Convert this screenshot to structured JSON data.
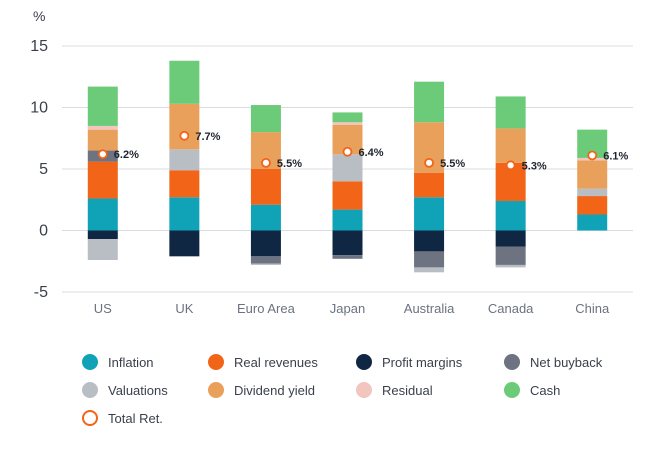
{
  "chart_data": {
    "type": "bar",
    "stacked": true,
    "ylabel": "%",
    "ylim": [
      -5,
      15
    ],
    "yticks": [
      15,
      10,
      5,
      0,
      -5
    ],
    "grid": true,
    "categories": [
      "US",
      "UK",
      "Euro Area",
      "Japan",
      "Australia",
      "Canada",
      "China"
    ],
    "series": [
      {
        "name": "Inflation",
        "color": "#10a3b8",
        "values": [
          2.6,
          2.7,
          2.1,
          1.7,
          2.7,
          2.4,
          1.3
        ]
      },
      {
        "name": "Real revenues",
        "color": "#f26418",
        "values": [
          3.0,
          2.2,
          2.9,
          2.3,
          2.0,
          3.1,
          1.5
        ]
      },
      {
        "name": "Profit margins",
        "color": "#0f2742",
        "values": [
          -0.7,
          -2.1,
          -2.1,
          -2.0,
          -1.7,
          -1.3,
          0
        ]
      },
      {
        "name": "Net buyback",
        "color": "#6d7380",
        "values": [
          0.9,
          0,
          -0.6,
          -0.3,
          -1.3,
          -1.5,
          0
        ]
      },
      {
        "name": "Valuations",
        "color": "#b9bdc4",
        "values": [
          -1.7,
          1.7,
          -0.1,
          2.2,
          -0.4,
          -0.2,
          0.6
        ]
      },
      {
        "name": "Dividend yield",
        "color": "#e9a05a",
        "values": [
          1.7,
          3.7,
          3.0,
          2.4,
          4.1,
          2.8,
          2.3
        ]
      },
      {
        "name": "Residual",
        "color": "#f2c5bf",
        "values": [
          0.3,
          0,
          0,
          0.2,
          0,
          0,
          0.2
        ]
      },
      {
        "name": "Cash",
        "color": "#6ccb78",
        "values": [
          3.2,
          3.5,
          2.2,
          0.8,
          3.3,
          2.6,
          2.3
        ]
      }
    ],
    "total_return": {
      "name": "Total Ret.",
      "values": [
        6.2,
        7.7,
        5.5,
        6.4,
        5.5,
        5.3,
        6.1
      ],
      "labels": [
        "6.2%",
        "7.7%",
        "5.5%",
        "6.4%",
        "5.5%",
        "5.3%",
        "6.1%"
      ]
    },
    "legend_position": "bottom"
  },
  "legend": {
    "items": [
      {
        "label": "Inflation",
        "color": "#10a3b8"
      },
      {
        "label": "Real revenues",
        "color": "#f26418"
      },
      {
        "label": "Profit margins",
        "color": "#0f2742"
      },
      {
        "label": "Net buyback",
        "color": "#6d7380"
      },
      {
        "label": "Valuations",
        "color": "#b9bdc4"
      },
      {
        "label": "Dividend yield",
        "color": "#e9a05a"
      },
      {
        "label": "Residual",
        "color": "#f2c5bf"
      },
      {
        "label": "Cash",
        "color": "#6ccb78"
      },
      {
        "label": "Total Ret.",
        "color": "#f26418"
      }
    ]
  }
}
